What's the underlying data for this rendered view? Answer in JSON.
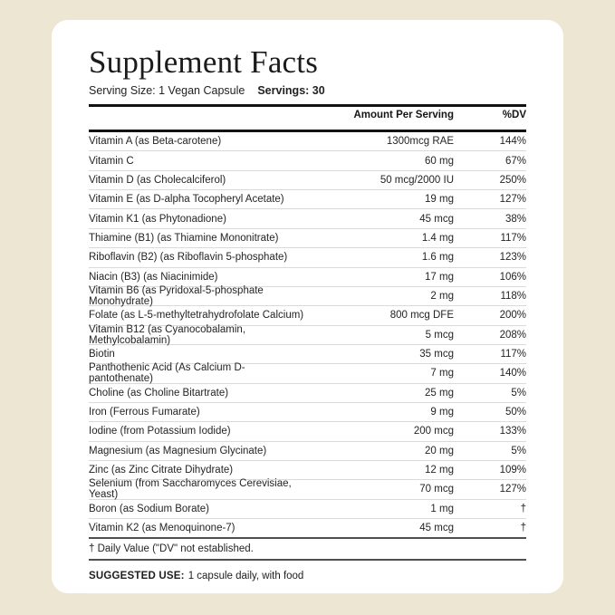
{
  "page": {
    "background_color": "#ECE6D3",
    "card_color": "#FFFFFF",
    "text_color": "#1F1F1F",
    "rule_color": "#121212",
    "divider_color": "#DADADA"
  },
  "label": {
    "title": "Supplement Facts",
    "serving_size": "Serving Size: 1 Vegan Capsule",
    "servings": "Servings: 30",
    "columns": {
      "amount": "Amount Per Serving",
      "dv": "%DV"
    },
    "rows": [
      {
        "name": "Vitamin A (as Beta-carotene)",
        "amount": "1300mcg RAE",
        "dv": "144%"
      },
      {
        "name": "Vitamin C",
        "amount": "60 mg",
        "dv": "67%"
      },
      {
        "name": "Vitamin D (as Cholecalciferol)",
        "amount": "50 mcg/2000 IU",
        "dv": "250%"
      },
      {
        "name": "Vitamin E (as D-alpha Tocopheryl Acetate)",
        "amount": "19 mg",
        "dv": "127%"
      },
      {
        "name": "Vitamin K1 (as Phytonadione)",
        "amount": "45 mcg",
        "dv": "38%"
      },
      {
        "name": "Thiamine (B1) (as Thiamine Mononitrate)",
        "amount": "1.4 mg",
        "dv": "117%"
      },
      {
        "name": "Riboflavin (B2) (as Riboflavin 5-phosphate)",
        "amount": "1.6 mg",
        "dv": "123%"
      },
      {
        "name": "Niacin (B3) (as Niacinimide)",
        "amount": "17 mg",
        "dv": "106%"
      },
      {
        "name": "Vitamin B6 (as Pyridoxal-5-phosphate Monohydrate)",
        "amount": "2 mg",
        "dv": "118%"
      },
      {
        "name": "Folate (as L-5-methyltetrahydrofolate Calcium)",
        "amount": "800 mcg DFE",
        "dv": "200%"
      },
      {
        "name": "Vitamin B12 (as Cyanocobalamin, Methylcobalamin)",
        "amount": "5 mcg",
        "dv": "208%"
      },
      {
        "name": "Biotin",
        "amount": "35 mcg",
        "dv": "117%"
      },
      {
        "name": "Panthothenic Acid (As Calcium D-pantothenate)",
        "amount": "7 mg",
        "dv": "140%"
      },
      {
        "name": "Choline (as Choline Bitartrate)",
        "amount": "25 mg",
        "dv": "5%"
      },
      {
        "name": "Iron (Ferrous Fumarate)",
        "amount": "9 mg",
        "dv": "50%"
      },
      {
        "name": "Iodine (from Potassium Iodide)",
        "amount": "200 mcg",
        "dv": "133%"
      },
      {
        "name": "Magnesium (as Magnesium Glycinate)",
        "amount": "20 mg",
        "dv": "5%"
      },
      {
        "name": "Zinc (as Zinc Citrate Dihydrate)",
        "amount": "12 mg",
        "dv": "109%"
      },
      {
        "name": "Selenium (from Saccharomyces Cerevisiae, Yeast)",
        "amount": "70 mcg",
        "dv": "127%"
      },
      {
        "name": "Boron (as Sodium Borate)",
        "amount": "1 mg",
        "dv": "†"
      },
      {
        "name": "Vitamin K2 (as Menoquinone-7)",
        "amount": "45 mcg",
        "dv": "†"
      }
    ],
    "footnote": "† Daily Value (\"DV\" not established.",
    "suggested_use": {
      "label": "SUGGESTED USE:",
      "text": "1 capsule daily, with food"
    }
  }
}
